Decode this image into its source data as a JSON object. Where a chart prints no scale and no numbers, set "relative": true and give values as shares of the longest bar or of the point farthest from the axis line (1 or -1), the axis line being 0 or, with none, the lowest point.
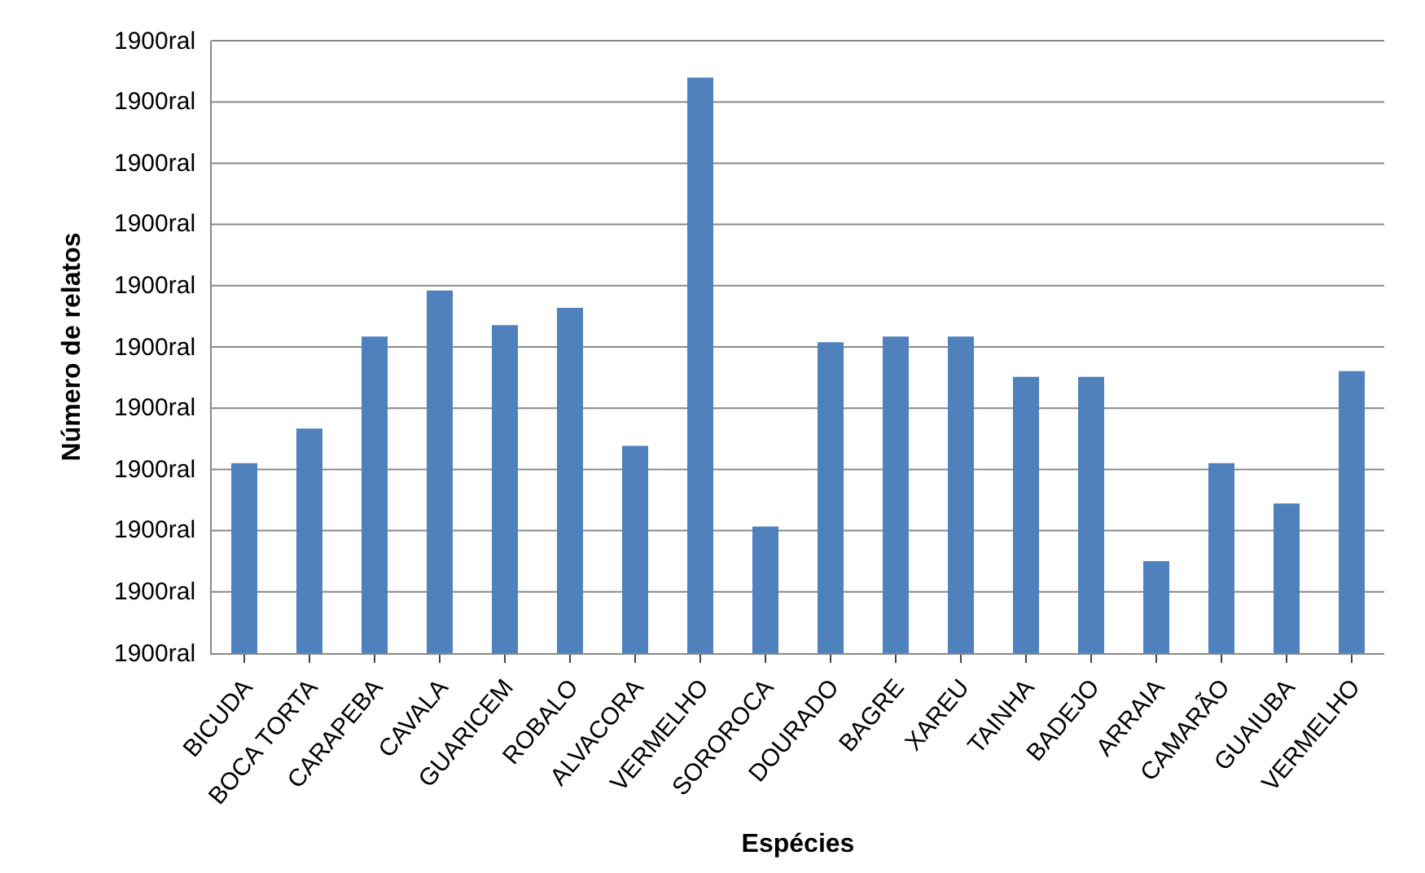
{
  "chart_data": {
    "type": "bar",
    "xlabel": "Espécies",
    "ylabel": "Número de relatos",
    "relative": true,
    "categories": [
      "BICUDA",
      "BOCA TORTA",
      "CARAPEBA",
      "CAVALA",
      "GUARICEM",
      "ROBALO",
      "ALVACORA",
      "VERMELHO",
      "SOROROCA",
      "DOURADO",
      "BAGRE",
      "XAREU",
      "TAINHA",
      "BADEJO",
      "ARRAIA",
      "CAMARÃO",
      "GUAIUBA",
      "VERMELHO"
    ],
    "values": [
      0.33,
      0.39,
      0.55,
      0.63,
      0.57,
      0.6,
      0.36,
      1,
      0.22,
      0.54,
      0.55,
      0.55,
      0.48,
      0.48,
      0.16,
      0.33,
      0.26,
      0.49
    ],
    "color": "#4f81bd",
    "annotations": [
      "1900ral",
      "1900ral",
      "1900ral",
      "1900ral",
      "1900ral",
      "1900ral",
      "1900ral",
      "1900ral",
      "1900ral",
      "1900ral",
      "1900ral"
    ],
    "grid": "y"
  }
}
